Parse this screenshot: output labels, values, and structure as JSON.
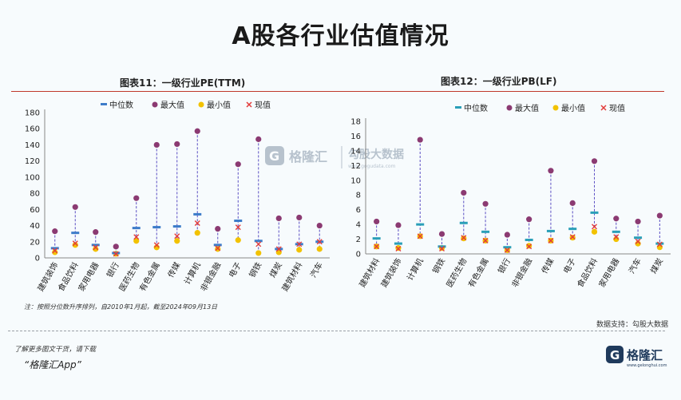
{
  "page": {
    "title": "A股各行业估值情况",
    "footnote": "注：按照分位数升序排列，自2010年1月起，截至2024年09月13日",
    "data_support": "数据支持：勾股大数据",
    "more_info": "了解更多图文干货，请下载",
    "app_name": "“格隆汇App”",
    "brand": "格隆汇",
    "brand_url": "www.gelonghui.com",
    "watermark_left": "格隆汇",
    "watermark_right": "勾股大数据",
    "watermark_url": "www.gogudata.com"
  },
  "legend": {
    "median": "中位数",
    "max": "最大值",
    "min": "最小值",
    "current": "现值"
  },
  "colors": {
    "median": "#3d7cc9",
    "median_right": "#2a9fb8",
    "max": "#8b3a72",
    "min": "#f2c200",
    "current": "#e23b3b",
    "whisker": "#5b4fc4",
    "title_rule": "#c0392b"
  },
  "chart_data": [
    {
      "type": "scatter",
      "title": "图表11：一级行业PE(TTM)",
      "ylim": [
        0,
        180
      ],
      "yticks": [
        0,
        20,
        40,
        60,
        80,
        100,
        120,
        140,
        160,
        180
      ],
      "legend_position": "top",
      "categories": [
        "建筑装饰",
        "食品饮料",
        "家用电器",
        "银行",
        "医药生物",
        "有色金属",
        "传媒",
        "计算机",
        "非银金融",
        "电子",
        "钢铁",
        "煤炭",
        "建筑材料",
        "汽车"
      ],
      "series": [
        {
          "name": "中位数",
          "values": [
            12,
            31,
            16,
            6,
            37,
            38,
            39,
            54,
            16,
            46,
            21,
            11,
            17,
            20
          ]
        },
        {
          "name": "最大值",
          "values": [
            33,
            63,
            32,
            14,
            74,
            140,
            141,
            157,
            36,
            116,
            147,
            49,
            50,
            40
          ]
        },
        {
          "name": "最小值",
          "values": [
            7,
            16,
            11,
            5,
            21,
            13,
            21,
            31,
            11,
            22,
            6,
            7,
            10,
            11
          ]
        },
        {
          "name": "现值",
          "values": [
            9,
            18,
            13,
            5,
            26,
            16,
            27,
            43,
            12,
            38,
            17,
            11,
            17,
            20
          ]
        }
      ]
    },
    {
      "type": "scatter",
      "title": "图表12：一级行业PB(LF)",
      "ylim": [
        0,
        18
      ],
      "yticks": [
        0,
        2,
        4,
        6,
        8,
        10,
        12,
        14,
        16,
        18
      ],
      "legend_position": "top",
      "categories": [
        "建筑材料",
        "建筑装饰",
        "计算机",
        "钢铁",
        "医药生物",
        "有色金属",
        "银行",
        "非银金融",
        "传媒",
        "电子",
        "食品饮料",
        "家用电器",
        "汽车",
        "煤炭"
      ],
      "series": [
        {
          "name": "中位数",
          "values": [
            2.1,
            1.4,
            4.0,
            1.0,
            4.2,
            3.0,
            0.9,
            1.9,
            3.1,
            3.4,
            5.6,
            3.0,
            2.2,
            1.4
          ]
        },
        {
          "name": "最大值",
          "values": [
            4.4,
            3.9,
            15.5,
            2.7,
            8.3,
            6.8,
            2.6,
            4.7,
            11.3,
            6.9,
            12.6,
            4.8,
            4.4,
            5.2
          ]
        },
        {
          "name": "最小值",
          "values": [
            1.0,
            0.8,
            2.4,
            0.8,
            2.1,
            1.8,
            0.5,
            1.1,
            1.8,
            2.2,
            3.0,
            2.0,
            1.4,
            0.9
          ]
        },
        {
          "name": "现值",
          "values": [
            1.0,
            0.7,
            2.4,
            0.7,
            2.2,
            1.8,
            0.5,
            1.0,
            1.8,
            2.3,
            3.7,
            2.3,
            1.7,
            1.3
          ]
        }
      ]
    }
  ]
}
